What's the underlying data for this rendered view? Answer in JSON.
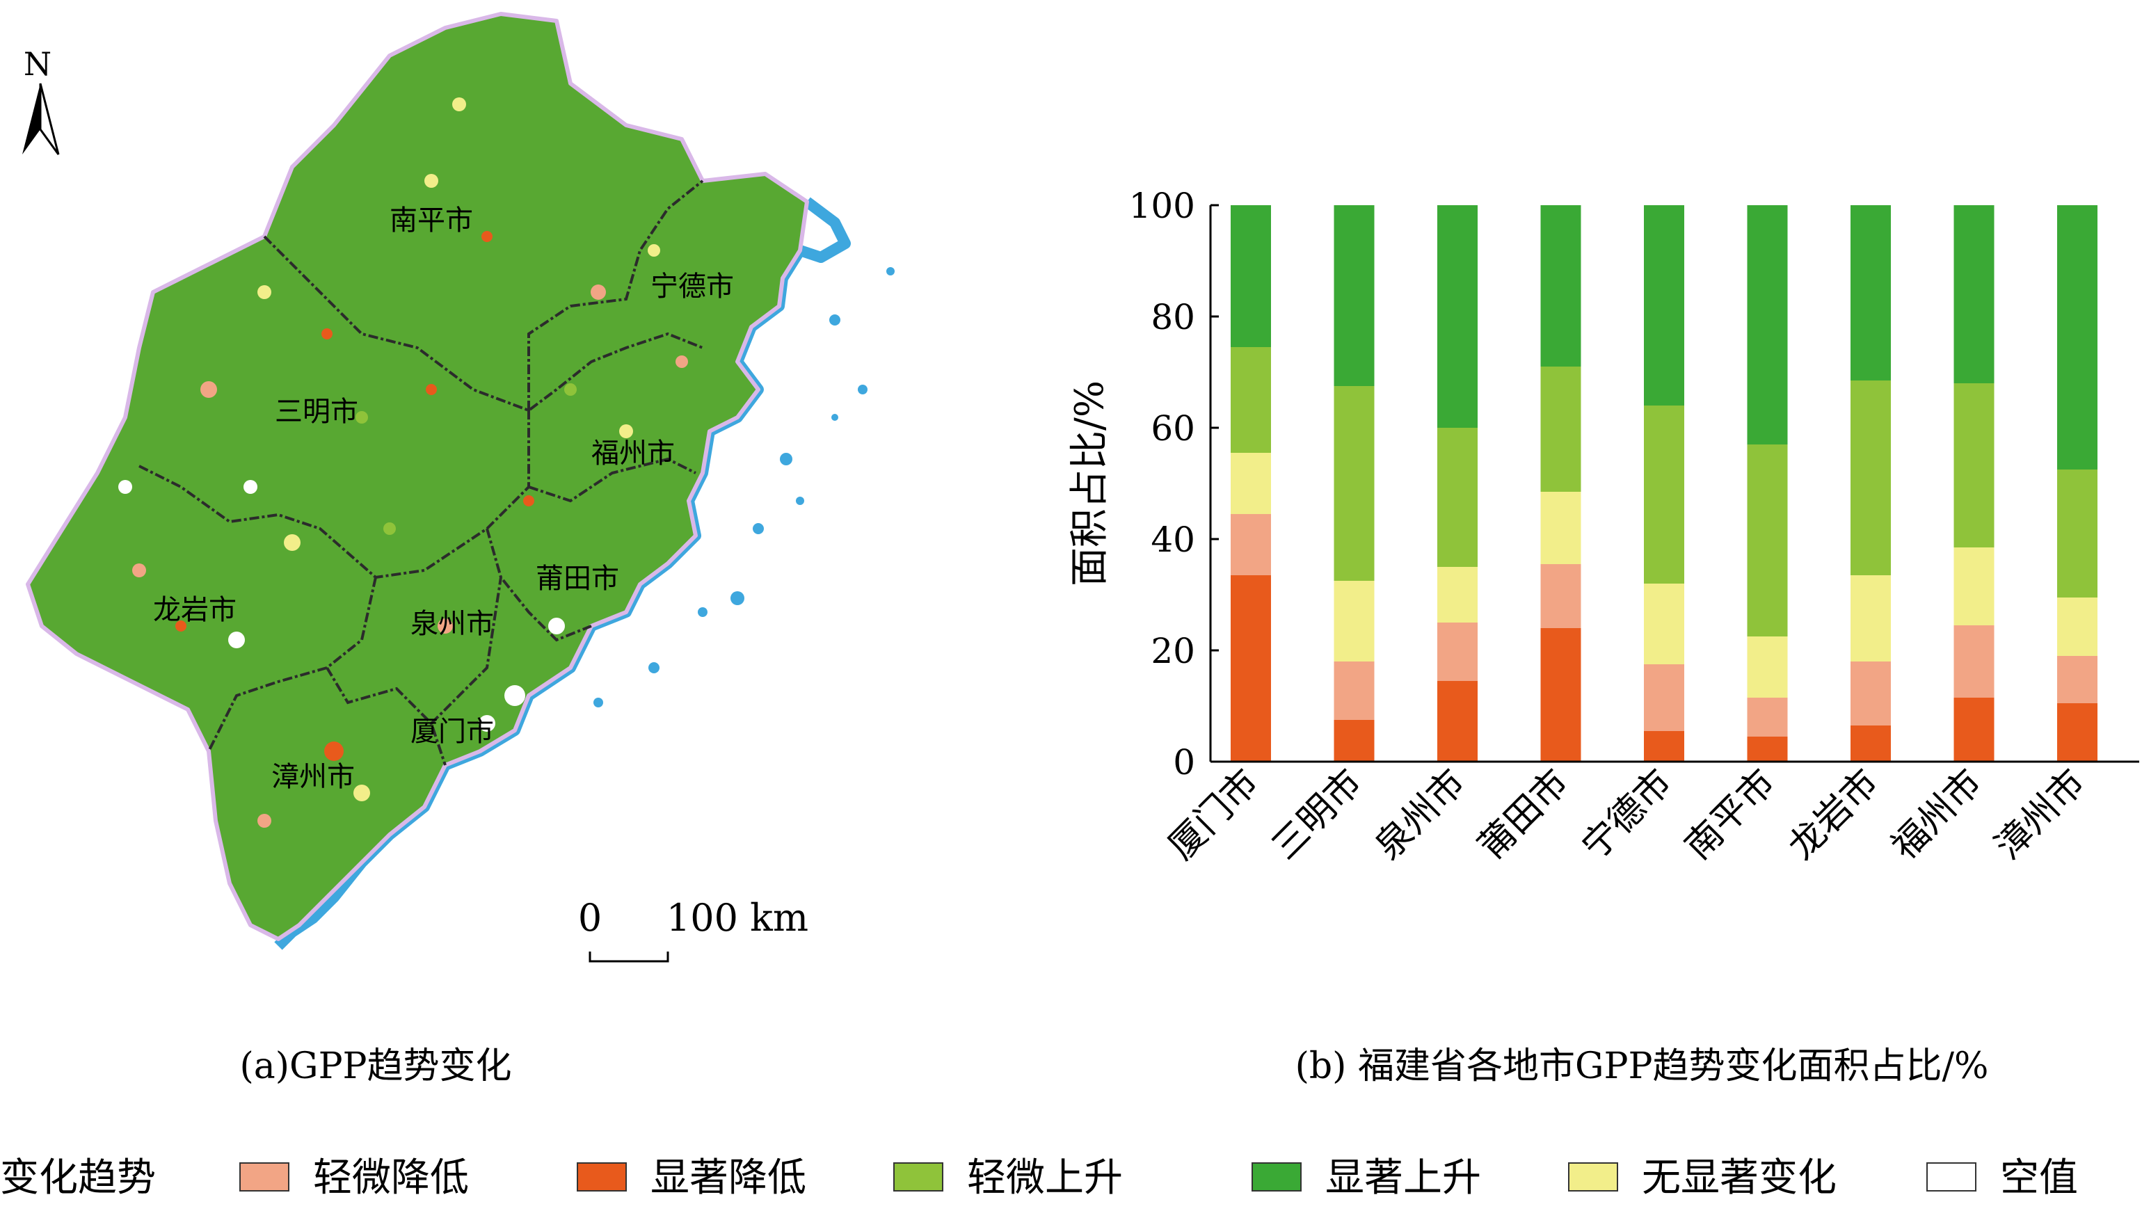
{
  "colors": {
    "slight_decrease": "#f2a585",
    "significant_decrease": "#e85a1c",
    "slight_increase": "#8fc33a",
    "significant_increase": "#3aa935",
    "no_significant_change": "#f2ee8a",
    "null_value": "#ffffff",
    "water": "#3ea7de",
    "map_base": "#58a832",
    "boundary": "#2b2b2b"
  },
  "map": {
    "north_label": "N",
    "scale_zero": "0",
    "scale_label": "100 km",
    "caption": "(a)GPP趋势变化",
    "cities": [
      "南平市",
      "宁德市",
      "三明市",
      "福州市",
      "龙岩市",
      "莆田市",
      "泉州市",
      "厦门市",
      "漳州市"
    ]
  },
  "chart_caption": "(b) 福建省各地市GPP趋势变化面积占比/%",
  "legend": {
    "title": "变化趋势",
    "items": [
      {
        "label": "轻微降低",
        "color_key": "slight_decrease"
      },
      {
        "label": "显著降低",
        "color_key": "significant_decrease"
      },
      {
        "label": "轻微上升",
        "color_key": "slight_increase"
      },
      {
        "label": "显著上升",
        "color_key": "significant_increase"
      },
      {
        "label": "无显著变化",
        "color_key": "no_significant_change"
      },
      {
        "label": "空值",
        "color_key": "null_value"
      }
    ]
  },
  "chart_data": {
    "type": "bar",
    "stacked": true,
    "categories": [
      "厦门市",
      "三明市",
      "泉州市",
      "莆田市",
      "宁德市",
      "南平市",
      "龙岩市",
      "福州市",
      "漳州市"
    ],
    "ylabel": "面积占比/%",
    "xlabel": "",
    "ylim": [
      0,
      100
    ],
    "yticks": [
      0,
      20,
      40,
      60,
      80,
      100
    ],
    "grid": false,
    "legend_position": "bottom",
    "series": [
      {
        "name": "显著降低",
        "color_key": "significant_decrease",
        "values": [
          33.5,
          7.5,
          14.5,
          24.0,
          5.5,
          4.5,
          6.5,
          11.5,
          10.5
        ]
      },
      {
        "name": "轻微降低",
        "color_key": "slight_decrease",
        "values": [
          11.0,
          10.5,
          10.5,
          11.5,
          12.0,
          7.0,
          11.5,
          13.0,
          8.5
        ]
      },
      {
        "name": "无显著变化",
        "color_key": "no_significant_change",
        "values": [
          11.0,
          14.5,
          10.0,
          13.0,
          14.5,
          11.0,
          15.5,
          14.0,
          10.5
        ]
      },
      {
        "name": "轻微上升",
        "color_key": "slight_increase",
        "values": [
          19.0,
          35.0,
          25.0,
          22.5,
          32.0,
          34.5,
          35.0,
          29.5,
          23.0
        ]
      },
      {
        "name": "显著上升",
        "color_key": "significant_increase",
        "values": [
          25.5,
          32.5,
          40.0,
          29.0,
          36.0,
          43.0,
          31.5,
          32.0,
          47.5
        ]
      }
    ]
  }
}
